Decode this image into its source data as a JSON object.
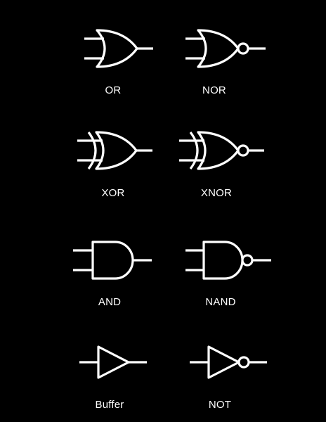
{
  "colors": {
    "background": "#000000",
    "symbol": "#ffffff",
    "text": "#ffffff"
  },
  "gates": [
    {
      "label": "OR",
      "icon": "or-gate-icon"
    },
    {
      "label": "NOR",
      "icon": "nor-gate-icon"
    },
    {
      "label": "XOR",
      "icon": "xor-gate-icon"
    },
    {
      "label": "XNOR",
      "icon": "xnor-gate-icon"
    },
    {
      "label": "AND",
      "icon": "and-gate-icon"
    },
    {
      "label": "NAND",
      "icon": "nand-gate-icon"
    },
    {
      "label": "Buffer",
      "icon": "buffer-gate-icon"
    },
    {
      "label": "NOT",
      "icon": "not-gate-icon"
    }
  ]
}
